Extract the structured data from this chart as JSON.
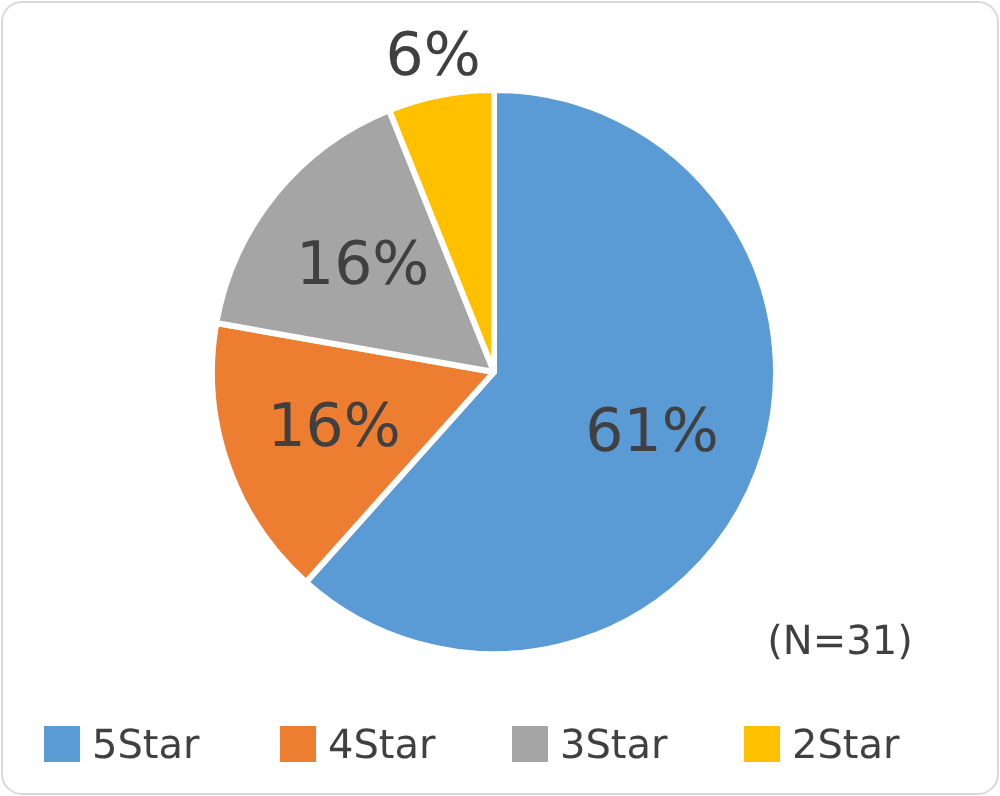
{
  "chart_data": {
    "type": "pie",
    "categories": [
      "5Star",
      "4Star",
      "3Star",
      "2Star"
    ],
    "values": [
      61,
      16,
      16,
      6
    ],
    "value_labels": [
      "61%",
      "16%",
      "16%",
      "6%"
    ],
    "colors": [
      "#5b9bd5",
      "#ed7d31",
      "#a5a5a5",
      "#ffc000"
    ],
    "legend": "bottom",
    "annotations": [
      "(N=31)"
    ]
  }
}
